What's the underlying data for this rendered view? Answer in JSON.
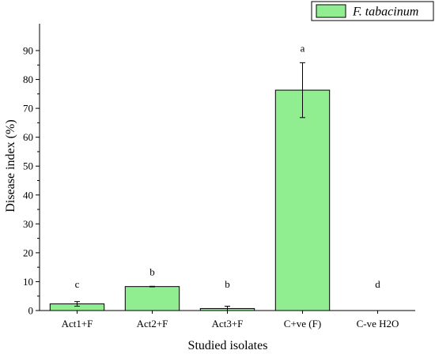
{
  "chart_data": {
    "type": "bar",
    "categories": [
      "Act1+F",
      "Act2+F",
      "Act3+F",
      "C+ve (F)",
      "C-ve H2O"
    ],
    "series": [
      {
        "name": "F. tabacinum",
        "values": [
          2.3,
          8.3,
          0.7,
          76.3,
          0
        ],
        "errors": [
          0.8,
          0.1,
          0.8,
          9.5,
          0
        ],
        "color": "#90ee90"
      }
    ],
    "significance_labels": [
      "c",
      "b",
      "b",
      "a",
      "d"
    ],
    "title": "",
    "xlabel": "Studied isolates",
    "ylabel": "Disease index (%)",
    "ylim": [
      0,
      100
    ],
    "yticks": [
      0,
      10,
      20,
      30,
      40,
      50,
      60,
      70,
      80,
      90
    ],
    "grid": false,
    "legend": "top-right"
  }
}
